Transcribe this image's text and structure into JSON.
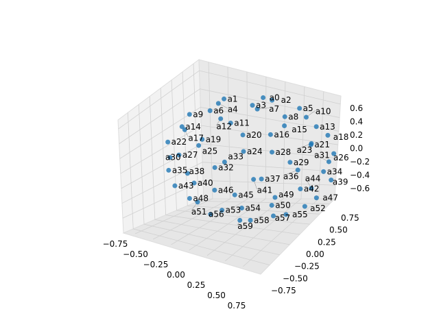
{
  "chart_data": {
    "type": "scatter3d",
    "title": "",
    "point_color": "#1f77b4",
    "label_color": "#000000",
    "point_label_prefix": "a",
    "shape": "sphere",
    "xlim": [
      -0.8,
      0.8
    ],
    "ylim": [
      -0.8,
      0.8
    ],
    "zlim": [
      -0.75,
      0.75
    ],
    "x_ticks": [
      "−0.75",
      "−0.50",
      "−0.25",
      "0.00",
      "0.25",
      "0.50",
      "0.75"
    ],
    "y_ticks": [
      "0.75",
      "0.50",
      "0.25",
      "0.00",
      "−0.25",
      "−0.50",
      "−0.75"
    ],
    "z_ticks": [
      "0.6",
      "0.4",
      "0.2",
      "0.0",
      "−0.2",
      "−0.4",
      "−0.6"
    ],
    "grid": true
  }
}
